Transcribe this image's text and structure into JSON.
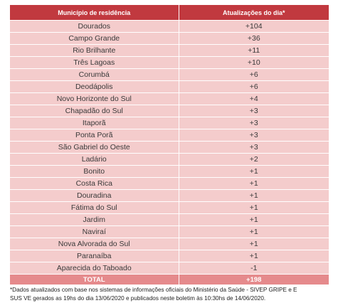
{
  "table": {
    "headers": [
      "Município de residência",
      "Atualizações do dia*"
    ],
    "rows": [
      [
        "Dourados",
        "+104"
      ],
      [
        "Campo Grande",
        "+36"
      ],
      [
        "Rio Brilhante",
        "+11"
      ],
      [
        "Três Lagoas",
        "+10"
      ],
      [
        "Corumbá",
        "+6"
      ],
      [
        "Deodápolis",
        "+6"
      ],
      [
        "Novo Horizonte do Sul",
        "+4"
      ],
      [
        "Chapadão do Sul",
        "+3"
      ],
      [
        "Itaporã",
        "+3"
      ],
      [
        "Ponta Porã",
        "+3"
      ],
      [
        "São Gabriel do Oeste",
        "+3"
      ],
      [
        "Ladário",
        "+2"
      ],
      [
        "Bonito",
        "+1"
      ],
      [
        "Costa Rica",
        "+1"
      ],
      [
        "Douradina",
        "+1"
      ],
      [
        "Fátima do Sul",
        "+1"
      ],
      [
        "Jardim",
        "+1"
      ],
      [
        "Naviraí",
        "+1"
      ],
      [
        "Nova Alvorada do Sul",
        "+1"
      ],
      [
        "Paranaíba",
        "+1"
      ],
      [
        "Aparecida do Taboado",
        "-1"
      ]
    ],
    "total": [
      "TOTAL",
      "+198"
    ]
  },
  "footnote": {
    "line1": "*Dados atualizados com base nos sistemas de informações oficiais do Ministério da Saúde - SIVEP GRIPE e E",
    "line2": "SUS VE gerados as 19hs do dia 13/06/2020 e publicados neste boletim às 10:30hs de 14/06/2020."
  },
  "colors": {
    "header": "#c1393f",
    "row": "#f4cccc",
    "total": "#e58a8c"
  }
}
